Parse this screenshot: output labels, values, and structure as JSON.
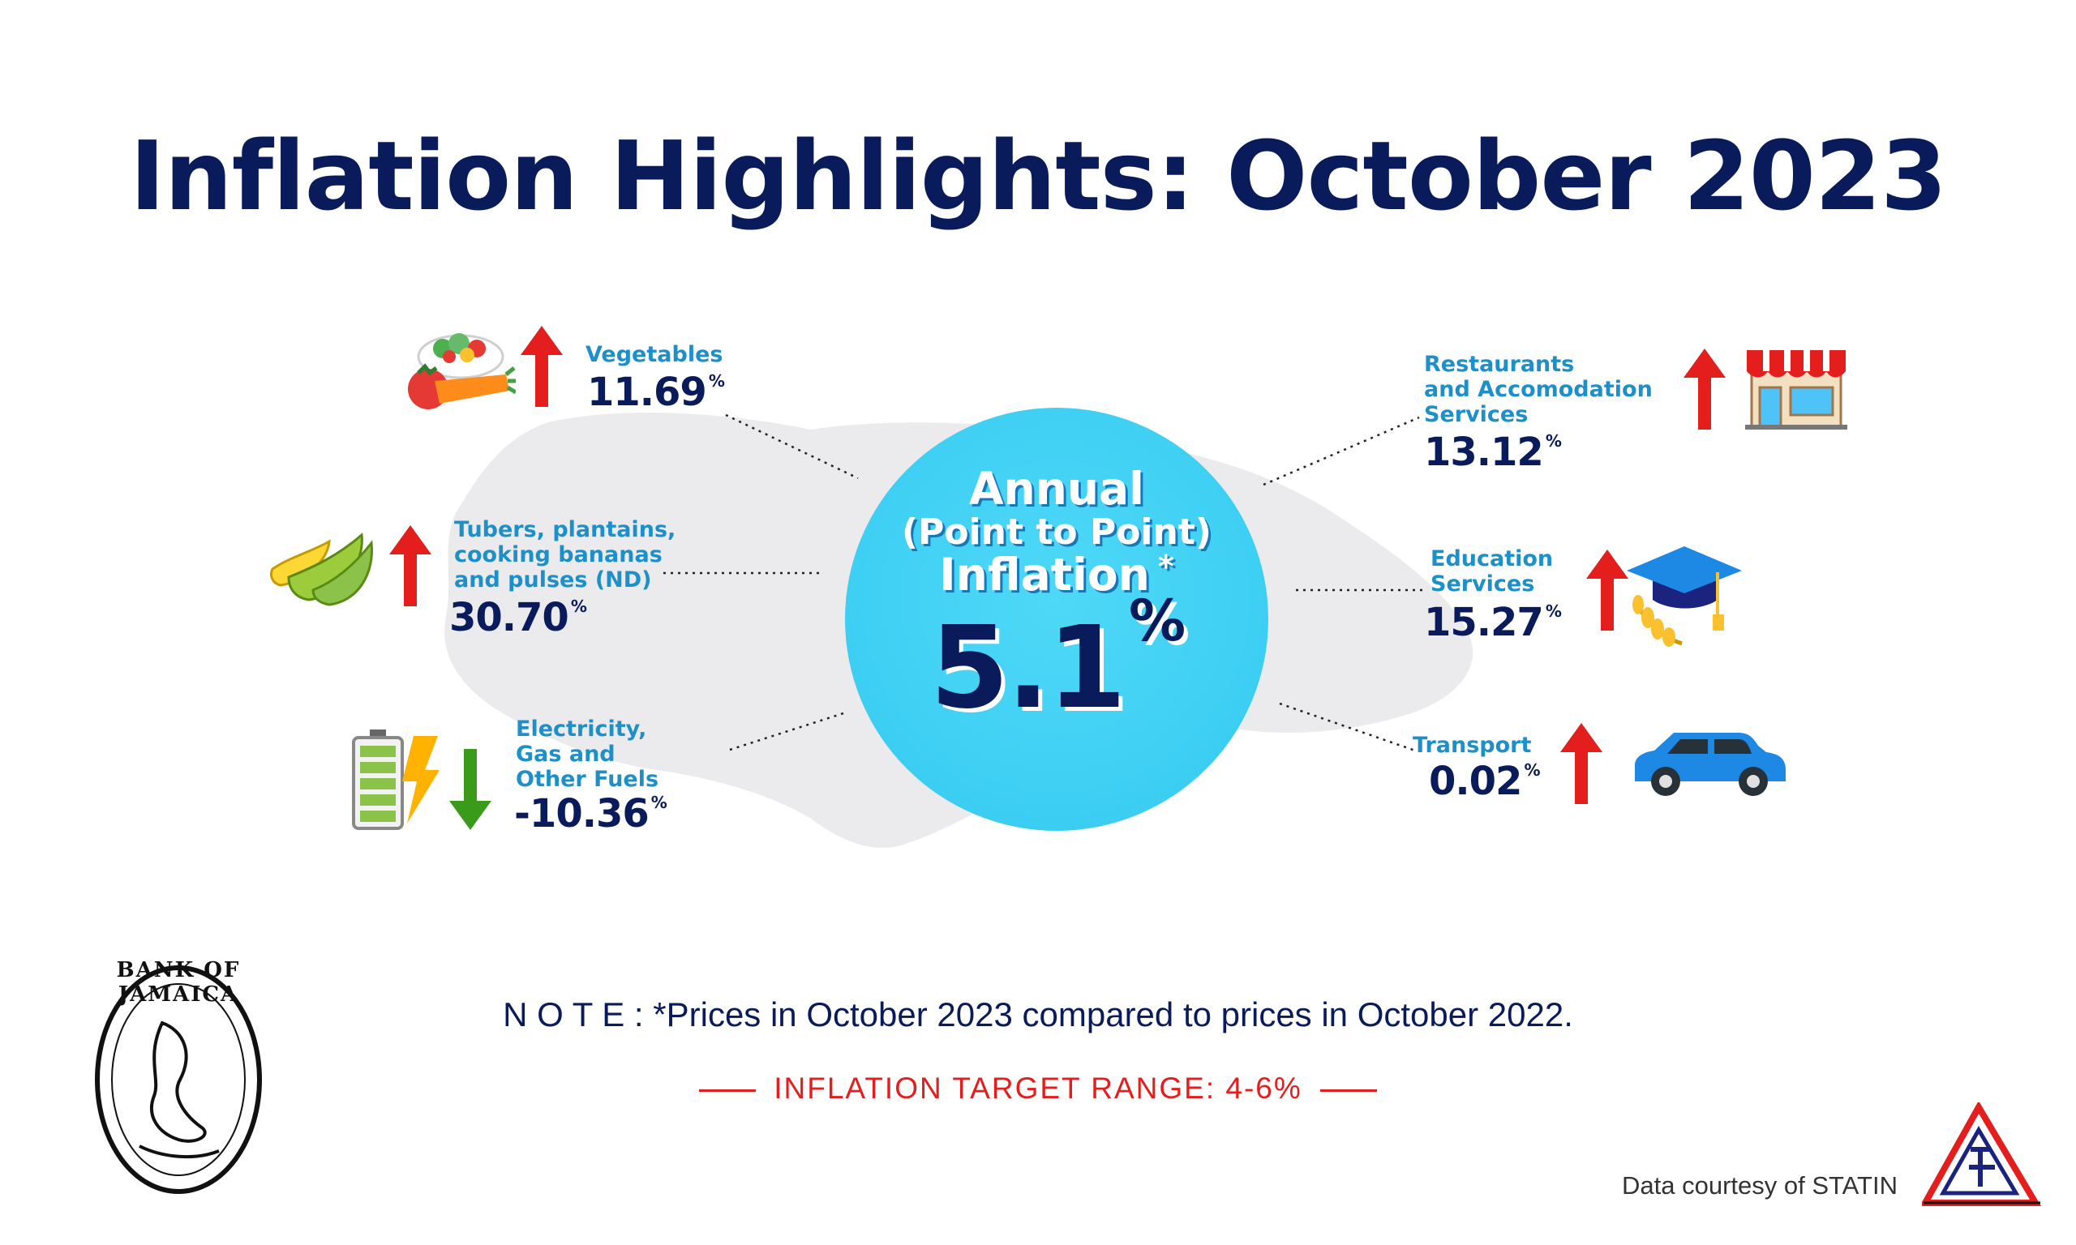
{
  "title": "Inflation Highlights: October 2023",
  "colors": {
    "navy": "#0a1b5c",
    "label_blue": "#1d8fc9",
    "circle_cyan": "#3fd0f4",
    "up_red": "#e41d1d",
    "down_green": "#3a9a1a",
    "map_grey": "#ebebed"
  },
  "center": {
    "line1": "Annual",
    "line2": "(Point to Point)",
    "line3": "Inflation",
    "asterisk": "*",
    "value": "5.1",
    "unit": "%"
  },
  "categories": [
    {
      "label_lines": [
        "Vegetables"
      ],
      "value": "11.69",
      "unit": "%",
      "direction": "up",
      "icon": "vegetables-icon"
    },
    {
      "label_lines": [
        "Tubers, plantains,",
        "cooking bananas",
        "and pulses (ND)"
      ],
      "value": "30.70",
      "unit": "%",
      "direction": "up",
      "icon": "bananas-icon"
    },
    {
      "label_lines": [
        "Electricity,",
        "Gas and",
        "Other Fuels"
      ],
      "value": "-10.36",
      "unit": "%",
      "direction": "down",
      "icon": "battery-icon"
    },
    {
      "label_lines": [
        "Restaurants",
        "and Accomodation",
        "Services"
      ],
      "value": "13.12",
      "unit": "%",
      "direction": "up",
      "icon": "restaurant-icon"
    },
    {
      "label_lines": [
        "Education",
        "Services"
      ],
      "value": "15.27",
      "unit": "%",
      "direction": "up",
      "icon": "graduation-cap-icon"
    },
    {
      "label_lines": [
        "Transport"
      ],
      "value": "0.02",
      "unit": "%",
      "direction": "up",
      "icon": "car-icon"
    }
  ],
  "note": "N O T E : *Prices in October 2023 compared to prices in October 2022.",
  "target": "INFLATION TARGET RANGE: 4-6%",
  "courtesy": "Data courtesy of STATIN",
  "logo_text": "BANK OF JAMAICA"
}
